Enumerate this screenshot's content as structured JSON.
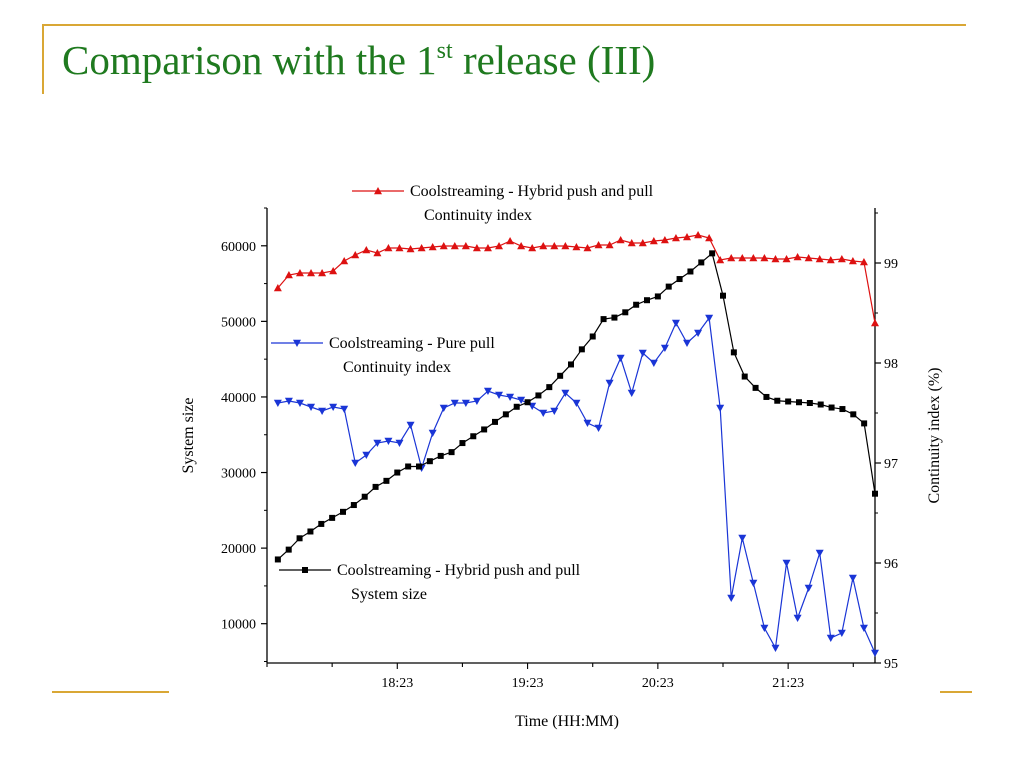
{
  "slide": {
    "title_before": "Comparison with the 1",
    "title_sup": "st",
    "title_after": " release (III)"
  },
  "chart_data": {
    "type": "line",
    "xlabel": "Time (HH:MM)",
    "ylabel": "System size",
    "y2label": "Continuity index (%)",
    "x_tick_labels": [
      "18:23",
      "19:23",
      "20:23",
      "21:23"
    ],
    "y_ticks": [
      10000,
      20000,
      30000,
      40000,
      50000,
      60000
    ],
    "y2_ticks": [
      95,
      96,
      97,
      98,
      99
    ],
    "ylim": [
      4800,
      65000
    ],
    "y2lim": [
      95,
      99.55
    ],
    "xlim": [
      0,
      56
    ],
    "x_tick_positions": [
      12,
      24,
      36,
      48
    ],
    "legend": [
      {
        "line1": "Coolstreaming - Hybrid push and pull",
        "line2": "Continuity index",
        "color": "#dd1111",
        "marker": "triangle-up"
      },
      {
        "line1": "Coolstreaming - Pure pull",
        "line2": "Continuity index",
        "color": "#1a35d6",
        "marker": "triangle-down"
      },
      {
        "line1": "Coolstreaming - Hybrid push and pull",
        "line2": "System size",
        "color": "#000000",
        "marker": "square"
      }
    ],
    "series": [
      {
        "name": "Coolstreaming - Hybrid push and pull Continuity index",
        "axis": "right",
        "color": "#dd1111",
        "marker": "triangle-up",
        "values": [
          98.75,
          98.88,
          98.9,
          98.9,
          98.9,
          98.92,
          99.02,
          99.08,
          99.13,
          99.1,
          99.15,
          99.15,
          99.14,
          99.15,
          99.16,
          99.17,
          99.17,
          99.17,
          99.15,
          99.15,
          99.17,
          99.22,
          99.17,
          99.15,
          99.17,
          99.17,
          99.17,
          99.16,
          99.15,
          99.18,
          99.18,
          99.23,
          99.2,
          99.2,
          99.22,
          99.23,
          99.25,
          99.26,
          99.28,
          99.25,
          99.03,
          99.05,
          99.05,
          99.05,
          99.05,
          99.04,
          99.04,
          99.06,
          99.05,
          99.04,
          99.03,
          99.04,
          99.02,
          99.01,
          98.4
        ]
      },
      {
        "name": "Coolstreaming - Pure pull Continuity index",
        "axis": "right",
        "color": "#1a35d6",
        "marker": "triangle-down",
        "values": [
          97.6,
          97.62,
          97.6,
          97.56,
          97.52,
          97.56,
          97.54,
          97.0,
          97.08,
          97.2,
          97.22,
          97.2,
          97.38,
          96.95,
          97.3,
          97.55,
          97.6,
          97.6,
          97.62,
          97.72,
          97.68,
          97.66,
          97.63,
          97.57,
          97.5,
          97.52,
          97.7,
          97.6,
          97.4,
          97.35,
          97.8,
          98.05,
          97.7,
          98.1,
          98.0,
          98.15,
          98.4,
          98.2,
          98.3,
          98.45,
          97.55,
          95.65,
          96.25,
          95.8,
          95.35,
          95.15,
          96.0,
          95.45,
          95.75,
          96.1,
          95.25,
          95.3,
          95.85,
          95.35,
          95.1
        ]
      },
      {
        "name": "Coolstreaming - Hybrid push and pull System size",
        "axis": "left",
        "color": "#000000",
        "marker": "square",
        "values": [
          18500,
          19800,
          21300,
          22200,
          23200,
          24000,
          24800,
          25700,
          26800,
          28100,
          28900,
          30000,
          30800,
          30800,
          31500,
          32200,
          32700,
          33900,
          34800,
          35700,
          36700,
          37700,
          38700,
          39300,
          40200,
          41300,
          42800,
          44300,
          46300,
          48000,
          50300,
          50500,
          51200,
          52200,
          52800,
          53300,
          54600,
          55600,
          56600,
          57800,
          59000,
          53400,
          45900,
          42700,
          41200,
          40000,
          39500,
          39400,
          39300,
          39200,
          39000,
          38600,
          38400,
          37700,
          36500,
          27200
        ]
      }
    ]
  }
}
